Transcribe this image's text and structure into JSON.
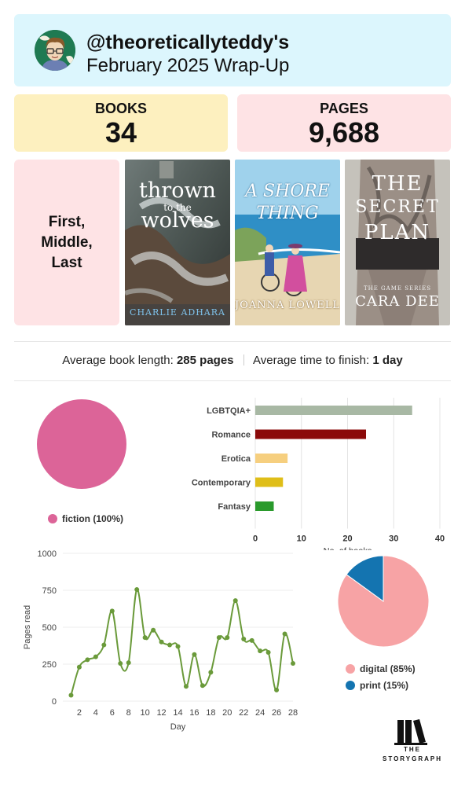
{
  "header": {
    "handle": "@theoreticallyteddy's",
    "title": "February 2025 Wrap-Up",
    "header_bg": "#dcf6fd"
  },
  "stats": {
    "books_label": "BOOKS",
    "books_value": "34",
    "pages_label": "PAGES",
    "pages_value": "9,688"
  },
  "featured": {
    "label": "First, Middle, Last",
    "covers": [
      {
        "title_line1": "thrown",
        "title_line2": "to the",
        "title_line3": "wolves",
        "author": "CHARLIE ADHARA"
      },
      {
        "title_line1": "A SHORE",
        "title_line2": "THING",
        "author": "JOANNA LOWELL"
      },
      {
        "title_line1": "THE",
        "title_line2": "SECRET",
        "title_line3": "PLAN",
        "series": "THE GAME SERIES",
        "author": "CARA DEE"
      }
    ]
  },
  "averages": {
    "length_label": "Average book length:",
    "length_value": "285 pages",
    "time_label": "Average time to finish:",
    "time_value": "1 day"
  },
  "fiction_chart": {
    "legend": "fiction (100%)",
    "color": "#dc6498"
  },
  "format_chart": {
    "digital_label": "digital (85%)",
    "print_label": "print (15%)",
    "digital_color": "#f7a3a5",
    "print_color": "#1474b0"
  },
  "logo": {
    "line1": "THE",
    "line2": "STORYGRAPH"
  },
  "chart_data": [
    {
      "type": "pie",
      "labels": [
        "fiction"
      ],
      "values": [
        100
      ],
      "colors": [
        "#dc6498"
      ]
    },
    {
      "type": "bar",
      "orientation": "horizontal",
      "categories": [
        "LGBTQIA+",
        "Romance",
        "Erotica",
        "Contemporary",
        "Fantasy"
      ],
      "values": [
        34,
        24,
        7,
        6,
        4
      ],
      "colors": [
        "#a8b8a4",
        "#8b0a0a",
        "#f6cf7f",
        "#dfbe18",
        "#2a9a2c"
      ],
      "xlabel": "No. of books",
      "xlim": [
        0,
        40
      ],
      "xticks": [
        0,
        10,
        20,
        30,
        40
      ],
      "grid": true
    },
    {
      "type": "line",
      "x": [
        1,
        2,
        3,
        4,
        5,
        6,
        7,
        8,
        9,
        10,
        11,
        12,
        13,
        14,
        15,
        16,
        17,
        18,
        19,
        20,
        21,
        22,
        23,
        24,
        25,
        26,
        27,
        28
      ],
      "y": [
        40,
        230,
        280,
        300,
        380,
        610,
        255,
        260,
        755,
        430,
        480,
        400,
        380,
        370,
        100,
        315,
        105,
        195,
        430,
        430,
        680,
        420,
        410,
        340,
        330,
        75,
        455,
        255
      ],
      "color": "#6a9a3a",
      "xlabel": "Day",
      "ylabel": "Pages read",
      "xlim": [
        0,
        28
      ],
      "ylim": [
        0,
        1000
      ],
      "xticks": [
        2,
        4,
        6,
        8,
        10,
        12,
        14,
        16,
        18,
        20,
        22,
        24,
        26,
        28
      ],
      "yticks": [
        0,
        250,
        500,
        750,
        1000
      ],
      "grid": true
    },
    {
      "type": "pie",
      "labels": [
        "digital",
        "print"
      ],
      "values": [
        85,
        15
      ],
      "colors": [
        "#f7a3a5",
        "#1474b0"
      ]
    }
  ]
}
